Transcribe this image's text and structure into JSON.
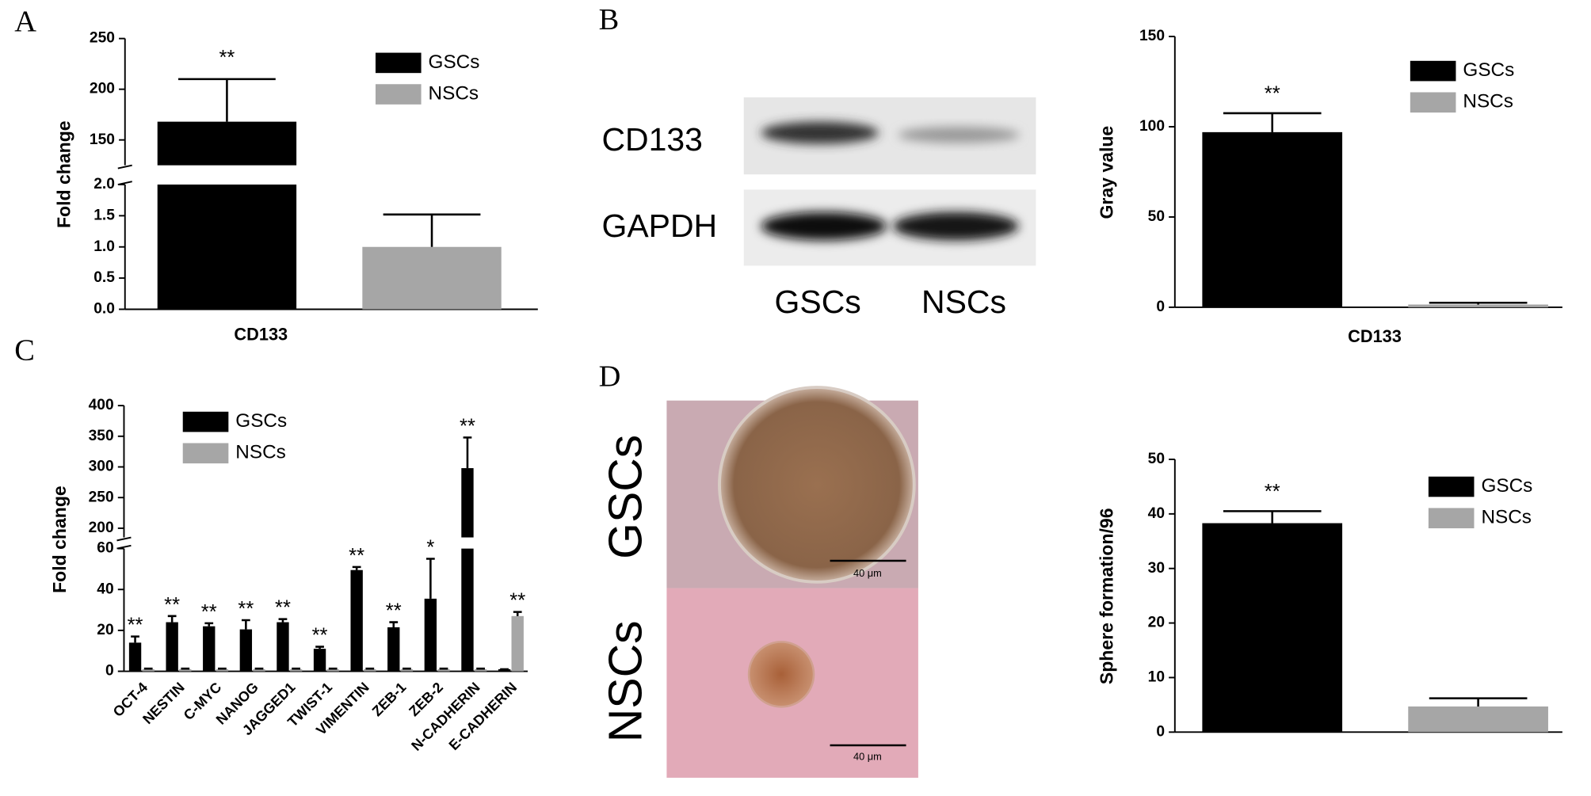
{
  "panel_labels": [
    "A",
    "B",
    "C",
    "D"
  ],
  "blot": {
    "bands": [
      "CD133",
      "GAPDH"
    ],
    "lanes": [
      "GSCs",
      "NSCs"
    ]
  },
  "micrographs": {
    "rows": [
      "GSCs",
      "NSCs"
    ],
    "scale_bar": "40 μm"
  },
  "chart_data": [
    {
      "type": "bar",
      "ylabel": "Fold change",
      "categories": [
        "CD133"
      ],
      "segments": [
        {
          "ylim": [
            0,
            2
          ],
          "yticks": [
            {
              "value": 0,
              "label": "0.0"
            },
            {
              "value": 0.5,
              "label": "0.5"
            },
            {
              "value": 1,
              "label": "1.0"
            },
            {
              "value": 1.5,
              "label": "1.5"
            },
            {
              "value": 2,
              "label": "2.0"
            }
          ]
        },
        {
          "ylim": [
            125,
            250
          ],
          "yticks": [
            150,
            200,
            250
          ]
        }
      ],
      "series": [
        {
          "name": "GSCs",
          "color": "#000000",
          "values": [
            168
          ],
          "errors": [
            42
          ],
          "significance": [
            "**"
          ]
        },
        {
          "name": "NSCs",
          "color": "#a6a6a6",
          "values": [
            1.0
          ],
          "errors": [
            0.52
          ]
        }
      ]
    },
    {
      "type": "bar",
      "ylabel": "Gray value",
      "categories": [
        "CD133"
      ],
      "ylim": [
        0,
        150
      ],
      "yticks": [
        0,
        50,
        100,
        150
      ],
      "series": [
        {
          "name": "GSCs",
          "color": "#000000",
          "values": [
            97
          ],
          "errors": [
            10.5
          ],
          "significance": [
            "**"
          ]
        },
        {
          "name": "NSCs",
          "color": "#a6a6a6",
          "values": [
            1.5
          ],
          "errors": [
            1
          ]
        }
      ]
    },
    {
      "type": "bar",
      "ylabel": "Fold change",
      "categories": [
        "OCT-4",
        "NESTIN",
        "C-MYC",
        "NANOG",
        "JAGGED1",
        "TWIST-1",
        "VIMENTIN",
        "ZEB-1",
        "ZEB-2",
        "N-CADHERIN",
        "E-CADHERIN"
      ],
      "segments": [
        {
          "ylim": [
            0,
            60
          ],
          "yticks": [
            0,
            20,
            40,
            60
          ]
        },
        {
          "ylim": [
            185,
            400
          ],
          "yticks": [
            200,
            250,
            300,
            350,
            400
          ]
        }
      ],
      "series": [
        {
          "name": "GSCs",
          "color": "#000000",
          "values": [
            14,
            24,
            22,
            20.5,
            24,
            11,
            49.5,
            21.5,
            35.5,
            298,
            1
          ],
          "errors": [
            3,
            3,
            1.5,
            4.5,
            1.5,
            1,
            1.5,
            2.5,
            19.5,
            50,
            0
          ],
          "significance": [
            "**",
            "**",
            "**",
            "**",
            "**",
            "**",
            "**",
            "**",
            "*",
            "**",
            null
          ]
        },
        {
          "name": "NSCs",
          "color": "#a6a6a6",
          "values": [
            1,
            1,
            1,
            1,
            1,
            1,
            1,
            1,
            1,
            1,
            27
          ],
          "errors": [
            0.3,
            0.3,
            0.3,
            0.3,
            0.3,
            0.3,
            0.3,
            0.3,
            0.3,
            0.3,
            2
          ],
          "significance": [
            null,
            null,
            null,
            null,
            null,
            null,
            null,
            null,
            null,
            null,
            "**"
          ]
        }
      ]
    },
    {
      "type": "bar",
      "ylabel": "Sphere formation/96",
      "categories": [
        null
      ],
      "ylim": [
        0,
        50
      ],
      "yticks": [
        0,
        10,
        20,
        30,
        40,
        50
      ],
      "series": [
        {
          "name": "GSCs",
          "color": "#000000",
          "values": [
            38.3
          ],
          "errors": [
            2.2
          ],
          "significance": [
            "**"
          ]
        },
        {
          "name": "NSCs",
          "color": "#a6a6a6",
          "values": [
            4.7
          ],
          "errors": [
            1.5
          ]
        }
      ]
    }
  ]
}
